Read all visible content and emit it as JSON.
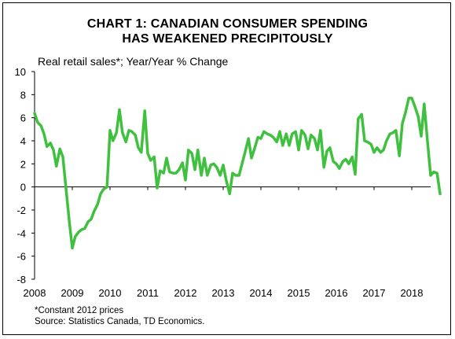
{
  "title_line1": "CHART 1: CANADIAN CONSUMER SPENDING",
  "title_line2": "HAS WEAKENED PRECIPITOUSLY",
  "footnote": "*Constant 2012 prices",
  "source": "Source: Statistics Canada, TD Economics.",
  "chart_data": {
    "type": "line",
    "title": "CHART 1: CANADIAN CONSUMER SPENDING HAS WEAKENED PRECIPITOUSLY",
    "ylabel": "Real retail sales*; Year/Year % Change",
    "xlabel": "",
    "ylim": [
      -8,
      10
    ],
    "xlim": [
      2008,
      2018.5
    ],
    "yticks": [
      10,
      8,
      6,
      4,
      2,
      0,
      -2,
      -4,
      -6,
      -8
    ],
    "xticks": [
      "2008",
      "2009",
      "2010",
      "2011",
      "2012",
      "2013",
      "2014",
      "2015",
      "2016",
      "2017",
      "2018"
    ],
    "grid": false,
    "line_color": "#3fc03f",
    "series": [
      {
        "values": [
          [
            2008.0,
            6.4
          ],
          [
            2008.08,
            5.6
          ],
          [
            2008.17,
            5.3
          ],
          [
            2008.25,
            4.6
          ],
          [
            2008.33,
            3.5
          ],
          [
            2008.42,
            3.8
          ],
          [
            2008.5,
            3.2
          ],
          [
            2008.58,
            1.8
          ],
          [
            2008.67,
            3.3
          ],
          [
            2008.75,
            2.6
          ],
          [
            2008.83,
            0.0
          ],
          [
            2008.92,
            -3.0
          ],
          [
            2009.0,
            -5.3
          ],
          [
            2009.08,
            -4.3
          ],
          [
            2009.17,
            -3.9
          ],
          [
            2009.25,
            -3.7
          ],
          [
            2009.33,
            -3.6
          ],
          [
            2009.42,
            -3.0
          ],
          [
            2009.5,
            -2.8
          ],
          [
            2009.58,
            -2.1
          ],
          [
            2009.67,
            -1.5
          ],
          [
            2009.75,
            -0.6
          ],
          [
            2009.83,
            -0.2
          ],
          [
            2009.92,
            0.0
          ],
          [
            2010.0,
            4.9
          ],
          [
            2010.08,
            4.0
          ],
          [
            2010.17,
            4.7
          ],
          [
            2010.25,
            6.7
          ],
          [
            2010.33,
            4.7
          ],
          [
            2010.42,
            3.9
          ],
          [
            2010.5,
            4.9
          ],
          [
            2010.58,
            4.8
          ],
          [
            2010.67,
            4.5
          ],
          [
            2010.75,
            3.4
          ],
          [
            2010.83,
            3.0
          ],
          [
            2010.92,
            6.6
          ],
          [
            2011.0,
            2.9
          ],
          [
            2011.08,
            2.3
          ],
          [
            2011.17,
            2.6
          ],
          [
            2011.25,
            -0.1
          ],
          [
            2011.33,
            1.4
          ],
          [
            2011.42,
            1.2
          ],
          [
            2011.5,
            2.5
          ],
          [
            2011.58,
            1.3
          ],
          [
            2011.67,
            1.2
          ],
          [
            2011.75,
            1.2
          ],
          [
            2011.83,
            1.5
          ],
          [
            2011.92,
            2.1
          ],
          [
            2012.0,
            0.6
          ],
          [
            2012.08,
            3.2
          ],
          [
            2012.17,
            2.9
          ],
          [
            2012.25,
            1.5
          ],
          [
            2012.33,
            3.2
          ],
          [
            2012.42,
            1.0
          ],
          [
            2012.5,
            2.5
          ],
          [
            2012.58,
            1.0
          ],
          [
            2012.67,
            1.9
          ],
          [
            2012.75,
            2.0
          ],
          [
            2012.83,
            1.7
          ],
          [
            2012.92,
            1.0
          ],
          [
            2013.0,
            1.9
          ],
          [
            2013.08,
            0.6
          ],
          [
            2013.17,
            -0.6
          ],
          [
            2013.25,
            1.2
          ],
          [
            2013.33,
            1.0
          ],
          [
            2013.42,
            1.0
          ],
          [
            2013.5,
            2.0
          ],
          [
            2013.58,
            3.0
          ],
          [
            2013.67,
            4.2
          ],
          [
            2013.75,
            2.5
          ],
          [
            2013.83,
            3.3
          ],
          [
            2013.92,
            4.3
          ],
          [
            2014.0,
            4.2
          ],
          [
            2014.08,
            4.8
          ],
          [
            2014.17,
            4.6
          ],
          [
            2014.25,
            4.5
          ],
          [
            2014.33,
            4.3
          ],
          [
            2014.42,
            3.9
          ],
          [
            2014.5,
            4.8
          ],
          [
            2014.58,
            3.6
          ],
          [
            2014.67,
            4.6
          ],
          [
            2014.75,
            3.6
          ],
          [
            2014.83,
            4.6
          ],
          [
            2014.92,
            4.8
          ],
          [
            2015.0,
            3.2
          ],
          [
            2015.08,
            4.9
          ],
          [
            2015.17,
            4.5
          ],
          [
            2015.25,
            3.3
          ],
          [
            2015.33,
            4.5
          ],
          [
            2015.42,
            4.2
          ],
          [
            2015.5,
            3.2
          ],
          [
            2015.58,
            4.9
          ],
          [
            2015.67,
            1.7
          ],
          [
            2015.75,
            3.1
          ],
          [
            2015.83,
            3.4
          ],
          [
            2015.92,
            2.2
          ],
          [
            2016.0,
            2.0
          ],
          [
            2016.08,
            1.6
          ],
          [
            2016.17,
            2.2
          ],
          [
            2016.25,
            2.4
          ],
          [
            2016.33,
            2.0
          ],
          [
            2016.42,
            2.6
          ],
          [
            2016.5,
            1.1
          ],
          [
            2016.58,
            5.9
          ],
          [
            2016.67,
            6.3
          ],
          [
            2016.75,
            4.0
          ],
          [
            2016.83,
            3.9
          ],
          [
            2016.92,
            3.7
          ],
          [
            2017.0,
            3.0
          ],
          [
            2017.08,
            3.4
          ],
          [
            2017.17,
            3.0
          ],
          [
            2017.25,
            3.2
          ],
          [
            2017.33,
            4.0
          ],
          [
            2017.42,
            4.6
          ],
          [
            2017.5,
            4.7
          ],
          [
            2017.58,
            4.9
          ],
          [
            2017.67,
            2.7
          ],
          [
            2017.75,
            5.5
          ],
          [
            2017.83,
            6.4
          ],
          [
            2017.92,
            7.7
          ],
          [
            2018.0,
            7.7
          ],
          [
            2018.08,
            7.0
          ],
          [
            2018.17,
            6.1
          ],
          [
            2018.25,
            4.4
          ],
          [
            2018.33,
            7.2
          ],
          [
            2018.42,
            3.8
          ],
          [
            2018.5,
            1.0
          ],
          [
            2018.58,
            1.3
          ],
          [
            2018.67,
            1.2
          ],
          [
            2018.75,
            -0.6
          ]
        ]
      }
    ]
  }
}
